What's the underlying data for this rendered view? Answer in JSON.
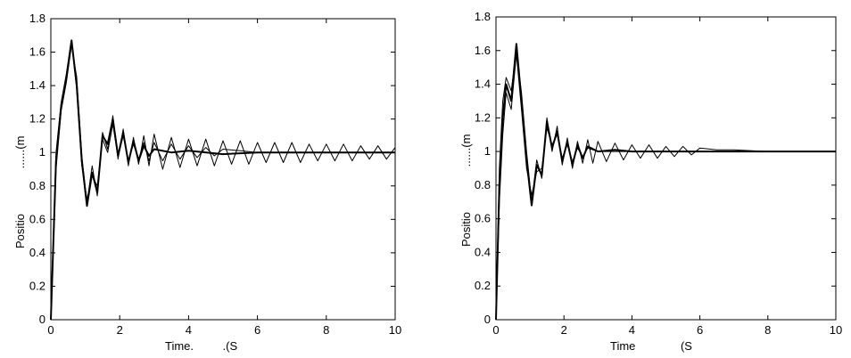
{
  "chart_data": [
    {
      "type": "line",
      "title": "",
      "xlabel": "Time.         .(S",
      "ylabel": "Positio              ......(m",
      "xlim": [
        0,
        10
      ],
      "ylim": [
        0,
        1.8
      ],
      "xticks": [
        "0",
        "2",
        "4",
        "6",
        "8",
        "10"
      ],
      "yticks": [
        "0",
        "0.2",
        "0.4",
        "0.6",
        "0.8",
        "1",
        "1.2",
        "1.4",
        "1.6",
        "1.8"
      ],
      "grid": false,
      "series_color": "#000000",
      "series": [
        {
          "x": [
            0,
            0.15,
            0.3,
            0.45,
            0.6,
            0.75,
            0.9,
            1.05,
            1.2,
            1.35,
            1.5,
            1.65,
            1.8,
            1.95,
            2.1,
            2.25,
            2.4,
            2.55,
            2.7,
            2.85,
            3.0,
            3.5,
            4,
            5,
            6,
            7,
            8,
            9,
            10
          ],
          "y": [
            0,
            0.95,
            1.28,
            1.45,
            1.67,
            1.4,
            0.95,
            0.68,
            0.88,
            0.76,
            1.1,
            1.05,
            1.2,
            0.98,
            1.12,
            0.94,
            1.07,
            0.95,
            1.04,
            0.98,
            1.02,
            1.0,
            1.01,
            0.99,
            1.0,
            1.0,
            1.0,
            1.0,
            1.0
          ]
        },
        {
          "x": [
            0,
            0.15,
            0.3,
            0.45,
            0.6,
            0.75,
            0.9,
            1.05,
            1.2,
            1.35,
            1.5,
            1.65,
            1.8,
            1.95,
            2.1,
            2.25,
            2.4,
            2.55,
            2.7,
            2.85,
            3.0,
            3.25,
            3.5,
            3.75,
            4.0,
            4.25,
            4.5,
            4.75,
            5.0,
            5.25,
            5.5,
            5.75,
            6.0,
            6.25,
            6.5,
            6.75,
            7.0,
            7.25,
            7.5,
            7.75,
            8.0,
            8.25,
            8.5,
            8.75,
            9.0,
            9.25,
            9.5,
            9.75,
            10
          ],
          "y": [
            0,
            0.9,
            1.25,
            1.42,
            1.64,
            1.45,
            0.98,
            0.7,
            0.92,
            0.74,
            1.12,
            1.02,
            1.22,
            0.96,
            1.14,
            0.92,
            1.09,
            0.93,
            1.1,
            0.92,
            1.11,
            0.9,
            1.09,
            0.91,
            1.08,
            0.92,
            1.08,
            0.92,
            1.07,
            0.93,
            1.07,
            0.93,
            1.06,
            0.94,
            1.06,
            0.94,
            1.06,
            0.94,
            1.05,
            0.95,
            1.05,
            0.95,
            1.05,
            0.95,
            1.04,
            0.96,
            1.04,
            0.96,
            1.03
          ]
        },
        {
          "x": [
            0,
            0.15,
            0.3,
            0.45,
            0.6,
            0.75,
            0.9,
            1.05,
            1.2,
            1.35,
            1.5,
            1.65,
            1.8,
            1.95,
            2.1,
            2.25,
            2.4,
            2.55,
            2.7,
            2.85,
            3.0,
            3.25,
            3.5,
            3.75,
            4.0,
            4.25,
            4.5,
            4.75,
            5.0,
            5.5,
            6.0,
            6.5,
            7.0,
            8.0,
            9.0,
            10
          ],
          "y": [
            0,
            1.0,
            1.3,
            1.47,
            1.66,
            1.38,
            0.92,
            0.72,
            0.86,
            0.8,
            1.08,
            1.0,
            1.17,
            0.97,
            1.1,
            0.95,
            1.05,
            0.96,
            1.06,
            0.95,
            1.06,
            0.95,
            1.05,
            0.96,
            1.04,
            0.97,
            1.03,
            0.98,
            1.02,
            1.01,
            1.0,
            1.0,
            1.0,
            1.0,
            1.0,
            1.0
          ]
        }
      ]
    },
    {
      "type": "line",
      "title": "",
      "xlabel": "Time              (S",
      "ylabel": "Positio              ......(m",
      "xlim": [
        0,
        10
      ],
      "ylim": [
        0,
        1.8
      ],
      "xticks": [
        "0",
        "2",
        "4",
        "6",
        "8",
        "10"
      ],
      "yticks": [
        "0",
        "0.2",
        "0.4",
        "0.6",
        "0.8",
        "1",
        "1.2",
        "1.4",
        "1.6",
        "1.8"
      ],
      "grid": false,
      "series_color": "#000000",
      "series": [
        {
          "x": [
            0,
            0.1,
            0.2,
            0.3,
            0.45,
            0.6,
            0.75,
            0.9,
            1.05,
            1.2,
            1.35,
            1.5,
            1.65,
            1.8,
            1.95,
            2.1,
            2.25,
            2.4,
            2.55,
            2.7,
            3.0,
            3.5,
            4,
            5,
            6,
            7,
            8,
            9,
            10
          ],
          "y": [
            0,
            0.8,
            1.2,
            1.4,
            1.3,
            1.64,
            1.3,
            0.95,
            0.68,
            0.92,
            0.86,
            1.18,
            1.02,
            1.12,
            0.94,
            1.06,
            0.92,
            1.04,
            0.96,
            1.03,
            1.0,
            1.01,
            1.0,
            1.0,
            1.0,
            1.0,
            1.0,
            1.0,
            1.0
          ]
        },
        {
          "x": [
            0,
            0.1,
            0.2,
            0.3,
            0.45,
            0.6,
            0.75,
            0.9,
            1.05,
            1.2,
            1.35,
            1.5,
            1.65,
            1.8,
            1.95,
            2.1,
            2.25,
            2.4,
            2.55,
            2.7,
            2.85,
            3.0,
            3.25,
            3.5,
            3.75,
            4.0,
            4.25,
            4.5,
            4.75,
            5.0,
            5.25,
            5.5,
            5.75,
            6.0,
            6.5,
            7.0,
            8.0,
            9.0,
            10
          ],
          "y": [
            0,
            0.9,
            1.3,
            1.44,
            1.36,
            1.6,
            1.35,
            1.0,
            0.7,
            0.95,
            0.84,
            1.2,
            1.0,
            1.15,
            0.92,
            1.08,
            0.9,
            1.06,
            0.93,
            1.07,
            0.93,
            1.06,
            0.94,
            1.05,
            0.95,
            1.04,
            0.96,
            1.04,
            0.96,
            1.03,
            0.97,
            1.03,
            0.98,
            1.02,
            1.01,
            1.01,
            1.0,
            1.0,
            1.0
          ]
        },
        {
          "x": [
            0,
            0.1,
            0.2,
            0.3,
            0.45,
            0.6,
            0.75,
            0.9,
            1.05,
            1.2,
            1.35,
            1.5,
            1.65,
            1.8,
            1.95,
            2.1,
            2.25,
            2.4,
            2.55,
            2.7,
            3.0,
            3.5,
            4,
            5,
            6,
            7,
            8,
            9,
            10
          ],
          "y": [
            0,
            0.7,
            1.1,
            1.35,
            1.25,
            1.58,
            1.25,
            0.9,
            0.74,
            0.88,
            0.9,
            1.14,
            1.04,
            1.1,
            0.96,
            1.04,
            0.94,
            1.02,
            0.97,
            1.02,
            1.0,
            1.0,
            1.0,
            1.0,
            1.0,
            1.0,
            1.0,
            1.0,
            1.0
          ]
        }
      ]
    }
  ]
}
